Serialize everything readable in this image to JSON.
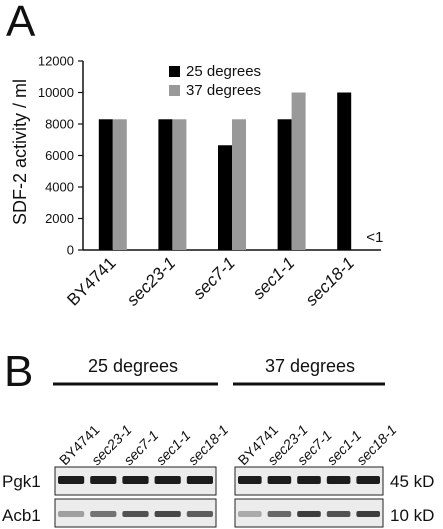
{
  "panel_a": {
    "letter": "A"
  },
  "panel_b": {
    "letter": "B",
    "conditions": [
      {
        "title": "25 degrees"
      },
      {
        "title": "37 degrees"
      }
    ],
    "lanes": [
      "BY4741",
      "sec23-1",
      "sec7-1",
      "sec1-1",
      "sec18-1"
    ],
    "rows": [
      {
        "protein": "Pgk1",
        "size": "45 kD"
      },
      {
        "protein": "Acb1",
        "size": "10 kD"
      }
    ]
  },
  "chart_data": {
    "type": "bar",
    "title": "",
    "xlabel": "",
    "ylabel": "SDF-2 activity / ml",
    "ylim": [
      0,
      12000
    ],
    "yticks": [
      "0",
      "2000",
      "4000",
      "6000",
      "8000",
      "10000",
      "12000"
    ],
    "categories": [
      "BY4741",
      "sec23-1",
      "sec7-1",
      "sec1-1",
      "sec18-1"
    ],
    "series": [
      {
        "name": "25 degrees",
        "color": "#000000",
        "values": [
          8300,
          8300,
          6650,
          8300,
          10000
        ]
      },
      {
        "name": "37 degrees",
        "color": "#999999",
        "values": [
          8300,
          8300,
          8300,
          10000,
          null
        ]
      }
    ],
    "annotations": [
      {
        "text": "<1"
      }
    ],
    "legend_position": "top"
  }
}
